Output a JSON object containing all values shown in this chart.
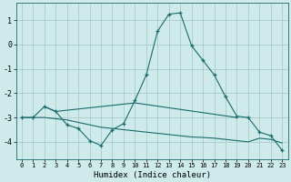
{
  "xlabel": "Humidex (Indice chaleur)",
  "background_color": "#ceeaea",
  "grid_color": "#a8cccc",
  "line_color": "#1a6b6b",
  "xlim": [
    -0.5,
    23.5
  ],
  "ylim": [
    -4.7,
    1.7
  ],
  "yticks": [
    -4,
    -3,
    -2,
    -1,
    0,
    1
  ],
  "xticks": [
    0,
    1,
    2,
    3,
    4,
    5,
    6,
    7,
    8,
    9,
    10,
    11,
    12,
    13,
    14,
    15,
    16,
    17,
    18,
    19,
    20,
    21,
    22,
    23
  ],
  "line1_x": [
    0,
    1,
    2,
    3,
    4,
    5,
    6,
    7,
    8,
    9,
    10,
    11,
    12,
    13,
    14,
    15,
    16,
    17,
    18,
    19,
    20,
    21,
    22,
    23
  ],
  "line1_y": [
    -3.0,
    -3.0,
    -2.55,
    -2.75,
    -3.3,
    -3.45,
    -3.95,
    -4.15,
    -3.5,
    -3.25,
    -2.3,
    -1.25,
    0.55,
    1.25,
    1.3,
    -0.05,
    -0.65,
    -1.25,
    -2.15,
    -2.95,
    -3.0,
    -3.6,
    -3.75,
    -4.35
  ],
  "line2_x": [
    2,
    3,
    10,
    19
  ],
  "line2_y": [
    -2.55,
    -2.75,
    -2.4,
    -3.0
  ],
  "line3_x": [
    0,
    1,
    2,
    3,
    4,
    5,
    6,
    7,
    8,
    9,
    10,
    11,
    12,
    13,
    14,
    15,
    16,
    17,
    18,
    19,
    20,
    21,
    22,
    23
  ],
  "line3_y": [
    -3.0,
    -3.0,
    -3.0,
    -3.05,
    -3.1,
    -3.2,
    -3.3,
    -3.4,
    -3.45,
    -3.5,
    -3.55,
    -3.6,
    -3.65,
    -3.7,
    -3.75,
    -3.8,
    -3.82,
    -3.85,
    -3.9,
    -3.95,
    -4.0,
    -3.85,
    -3.9,
    -4.05
  ]
}
